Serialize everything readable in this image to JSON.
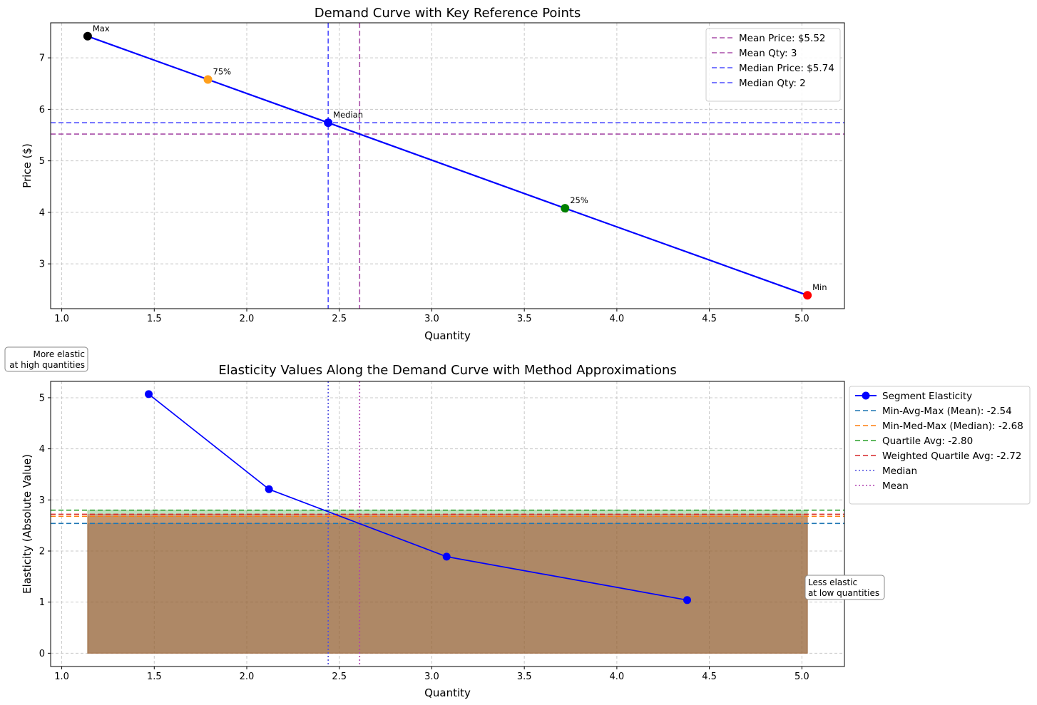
{
  "chart_data": [
    {
      "type": "line",
      "title": "Demand Curve with Key Reference Points",
      "xlabel": "Quantity",
      "ylabel": "Price ($)",
      "xlim": [
        0.94,
        5.23
      ],
      "ylim": [
        2.13,
        7.68
      ],
      "xticks": [
        1.0,
        1.5,
        2.0,
        2.5,
        3.0,
        3.5,
        4.0,
        4.5,
        5.0
      ],
      "xtick_labels": [
        "1.0",
        "1.5",
        "2.0",
        "2.5",
        "3.0",
        "3.5",
        "4.0",
        "4.5",
        "5.0"
      ],
      "yticks": [
        3,
        4,
        5,
        6,
        7
      ],
      "ytick_labels": [
        "3",
        "4",
        "5",
        "6",
        "7"
      ],
      "grid": true,
      "legend_position": "top-right",
      "series": [
        {
          "color": "#0000ff",
          "x": [
            1.14,
            1.79,
            2.44,
            3.72,
            5.03
          ],
          "y": [
            7.42,
            6.58,
            5.74,
            4.08,
            2.39
          ]
        }
      ],
      "key_points": [
        {
          "label": "Max",
          "x": 1.14,
          "y": 7.42,
          "color": "#000000"
        },
        {
          "label": "75%",
          "x": 1.79,
          "y": 6.58,
          "color": "#ff9f1c"
        },
        {
          "label": "Median",
          "x": 2.44,
          "y": 5.74,
          "color": "#0000ff"
        },
        {
          "label": "25%",
          "x": 3.72,
          "y": 4.08,
          "color": "#008000"
        },
        {
          "label": "Min",
          "x": 5.03,
          "y": 2.39,
          "color": "#ff0000"
        }
      ],
      "reference_lines": [
        {
          "label": "Mean Price: $5.52",
          "orientation": "horizontal",
          "value": 5.52,
          "color": "#a84da8",
          "style": "dashed"
        },
        {
          "label": "Mean Qty: 3",
          "orientation": "vertical",
          "value": 2.61,
          "color": "#a84da8",
          "style": "dashed"
        },
        {
          "label": "Median Price: $5.74",
          "orientation": "horizontal",
          "value": 5.74,
          "color": "#4d4dff",
          "style": "dashed"
        },
        {
          "label": "Median Qty: 2",
          "orientation": "vertical",
          "value": 2.44,
          "color": "#4d4dff",
          "style": "dashed"
        }
      ]
    },
    {
      "type": "line",
      "title": "Elasticity Values Along the Demand Curve with Method Approximations",
      "xlabel": "Quantity",
      "ylabel": "Elasticity (Absolute Value)",
      "xlim": [
        0.94,
        5.23
      ],
      "ylim": [
        -0.26,
        5.32
      ],
      "xticks": [
        1.0,
        1.5,
        2.0,
        2.5,
        3.0,
        3.5,
        4.0,
        4.5,
        5.0
      ],
      "xtick_labels": [
        "1.0",
        "1.5",
        "2.0",
        "2.5",
        "3.0",
        "3.5",
        "4.0",
        "4.5",
        "5.0"
      ],
      "yticks": [
        0,
        1,
        2,
        3,
        4,
        5
      ],
      "ytick_labels": [
        "0",
        "1",
        "2",
        "3",
        "4",
        "5"
      ],
      "grid": true,
      "legend_position": "outside-right",
      "series": [
        {
          "name": "Segment Elasticity",
          "color": "#0000ff",
          "x": [
            1.47,
            2.12,
            3.08,
            4.38
          ],
          "y": [
            5.07,
            3.21,
            1.89,
            1.04
          ]
        }
      ],
      "reference_lines": [
        {
          "label": "Min-Avg-Max (Mean): -2.54",
          "orientation": "horizontal",
          "value": 2.54,
          "color": "#1f77b4",
          "style": "dashed"
        },
        {
          "label": "Min-Med-Max (Median): -2.68",
          "orientation": "horizontal",
          "value": 2.68,
          "color": "#ff7f0e",
          "style": "dashed"
        },
        {
          "label": "Quartile Avg: -2.80",
          "orientation": "horizontal",
          "value": 2.8,
          "color": "#2ca02c",
          "style": "dashed"
        },
        {
          "label": "Weighted Quartile Avg: -2.72",
          "orientation": "horizontal",
          "value": 2.72,
          "color": "#d62728",
          "style": "dashed"
        },
        {
          "label": "Median",
          "orientation": "vertical",
          "value": 2.44,
          "color": "#5050e0",
          "style": "dotted"
        },
        {
          "label": "Mean",
          "orientation": "vertical",
          "value": 2.61,
          "color": "#b040b0",
          "style": "dotted"
        }
      ],
      "shaded_regions": [
        {
          "x_start": 1.14,
          "x_end": 5.03,
          "y_from": 0,
          "y_to": 2.54,
          "color": "#1f77b4"
        },
        {
          "x_start": 1.14,
          "x_end": 5.03,
          "y_from": 0,
          "y_to": 2.68,
          "color": "#ff7f0e"
        },
        {
          "x_start": 1.14,
          "x_end": 5.03,
          "y_from": 0,
          "y_to": 2.8,
          "color": "#2ca02c"
        },
        {
          "x_start": 1.14,
          "x_end": 5.03,
          "y_from": 0,
          "y_to": 2.72,
          "color": "#d62728"
        }
      ],
      "annotations": [
        {
          "lines": [
            "More elastic",
            "at high quantities"
          ]
        },
        {
          "lines": [
            "Less elastic",
            "at low quantities"
          ]
        }
      ]
    }
  ]
}
